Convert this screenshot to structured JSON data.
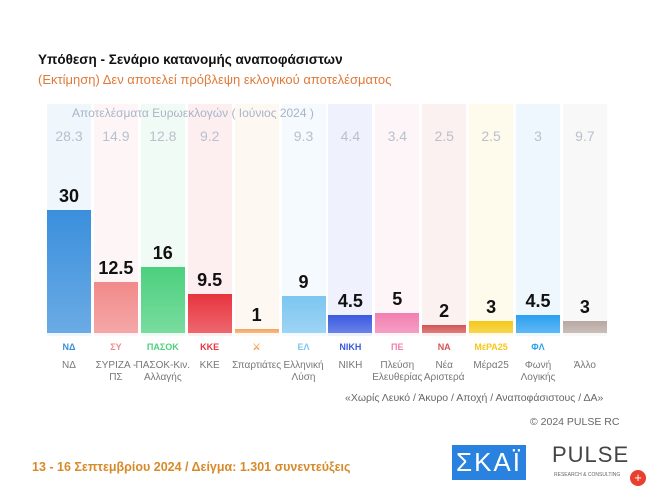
{
  "header": {
    "title": "Υπόθεση - Σενάριο κατανομής αναποφάσιστων",
    "subtitle": "(Εκτίμηση)   Δεν αποτελεί πρόβλεψη εκλογικού αποτελέσματος"
  },
  "chart_data": {
    "type": "bar",
    "title": "Υπόθεση - Σενάριο κατανομής αναποφάσιστων",
    "categories": [
      "ΝΔ",
      "ΣΥΡΙΖΑ - ΠΣ",
      "ΠΑΣΟΚ-Κιν. Αλλαγής",
      "ΚΚΕ",
      "Σπαρτιάτες",
      "Ελληνική Λύση",
      "ΝΙΚΗ",
      "Πλεύση Ελευθερίας",
      "Νέα Αριστερά",
      "Μέρα25",
      "Φωνή Λογικής",
      "Άλλο"
    ],
    "series": [
      {
        "name": "Εκτίμηση",
        "values": [
          30,
          12.5,
          16,
          9.5,
          1,
          9,
          4.5,
          5,
          2,
          3,
          4.5,
          3
        ]
      },
      {
        "name": "Αποτελέσματα Ευρωεκλογών ( Ιούνιος 2024 )",
        "values": [
          28.3,
          14.9,
          12.8,
          9.2,
          null,
          9.3,
          4.4,
          3.4,
          2.5,
          2.5,
          3,
          9.7
        ]
      }
    ],
    "colors": [
      "#3a8fdc",
      "#f28a8a",
      "#4cd07e",
      "#e8343e",
      "#f4a35e",
      "#7cc6f0",
      "#3a5ae0",
      "#f27fb0",
      "#d35454",
      "#f4c81a",
      "#2ba0f0",
      "#b8a8a2"
    ],
    "logos": [
      "ΝΔ",
      "ΣΥ",
      "ΠΑΣΟΚ",
      "ΚΚΕ",
      "⚔",
      "ΕΛ",
      "ΝΙΚΗ",
      "ΠΕ",
      "ΝΑ",
      "ΜέΡΑ25",
      "ΦΛ",
      ""
    ],
    "ylim": [
      0,
      32
    ]
  },
  "notes": {
    "euro_header": "Αποτελέσματα Ευρωεκλογών  ( Ιούνιος 2024 )",
    "exclusion": "«Χωρίς Λευκό / Άκυρο / Αποχή / Αναποφάσιστους / ΔΑ»",
    "copyright": "© 2024 PULSE RC"
  },
  "footer": {
    "text": "13 - 16 Σεπτεμβρίου 2024  /  Δείγμα:  1.301 συνεντεύξεις",
    "skai": "ΣΚΑΪ",
    "pulse": "PULSE",
    "pulse_sub": "RESEARCH & CONSULTING"
  }
}
